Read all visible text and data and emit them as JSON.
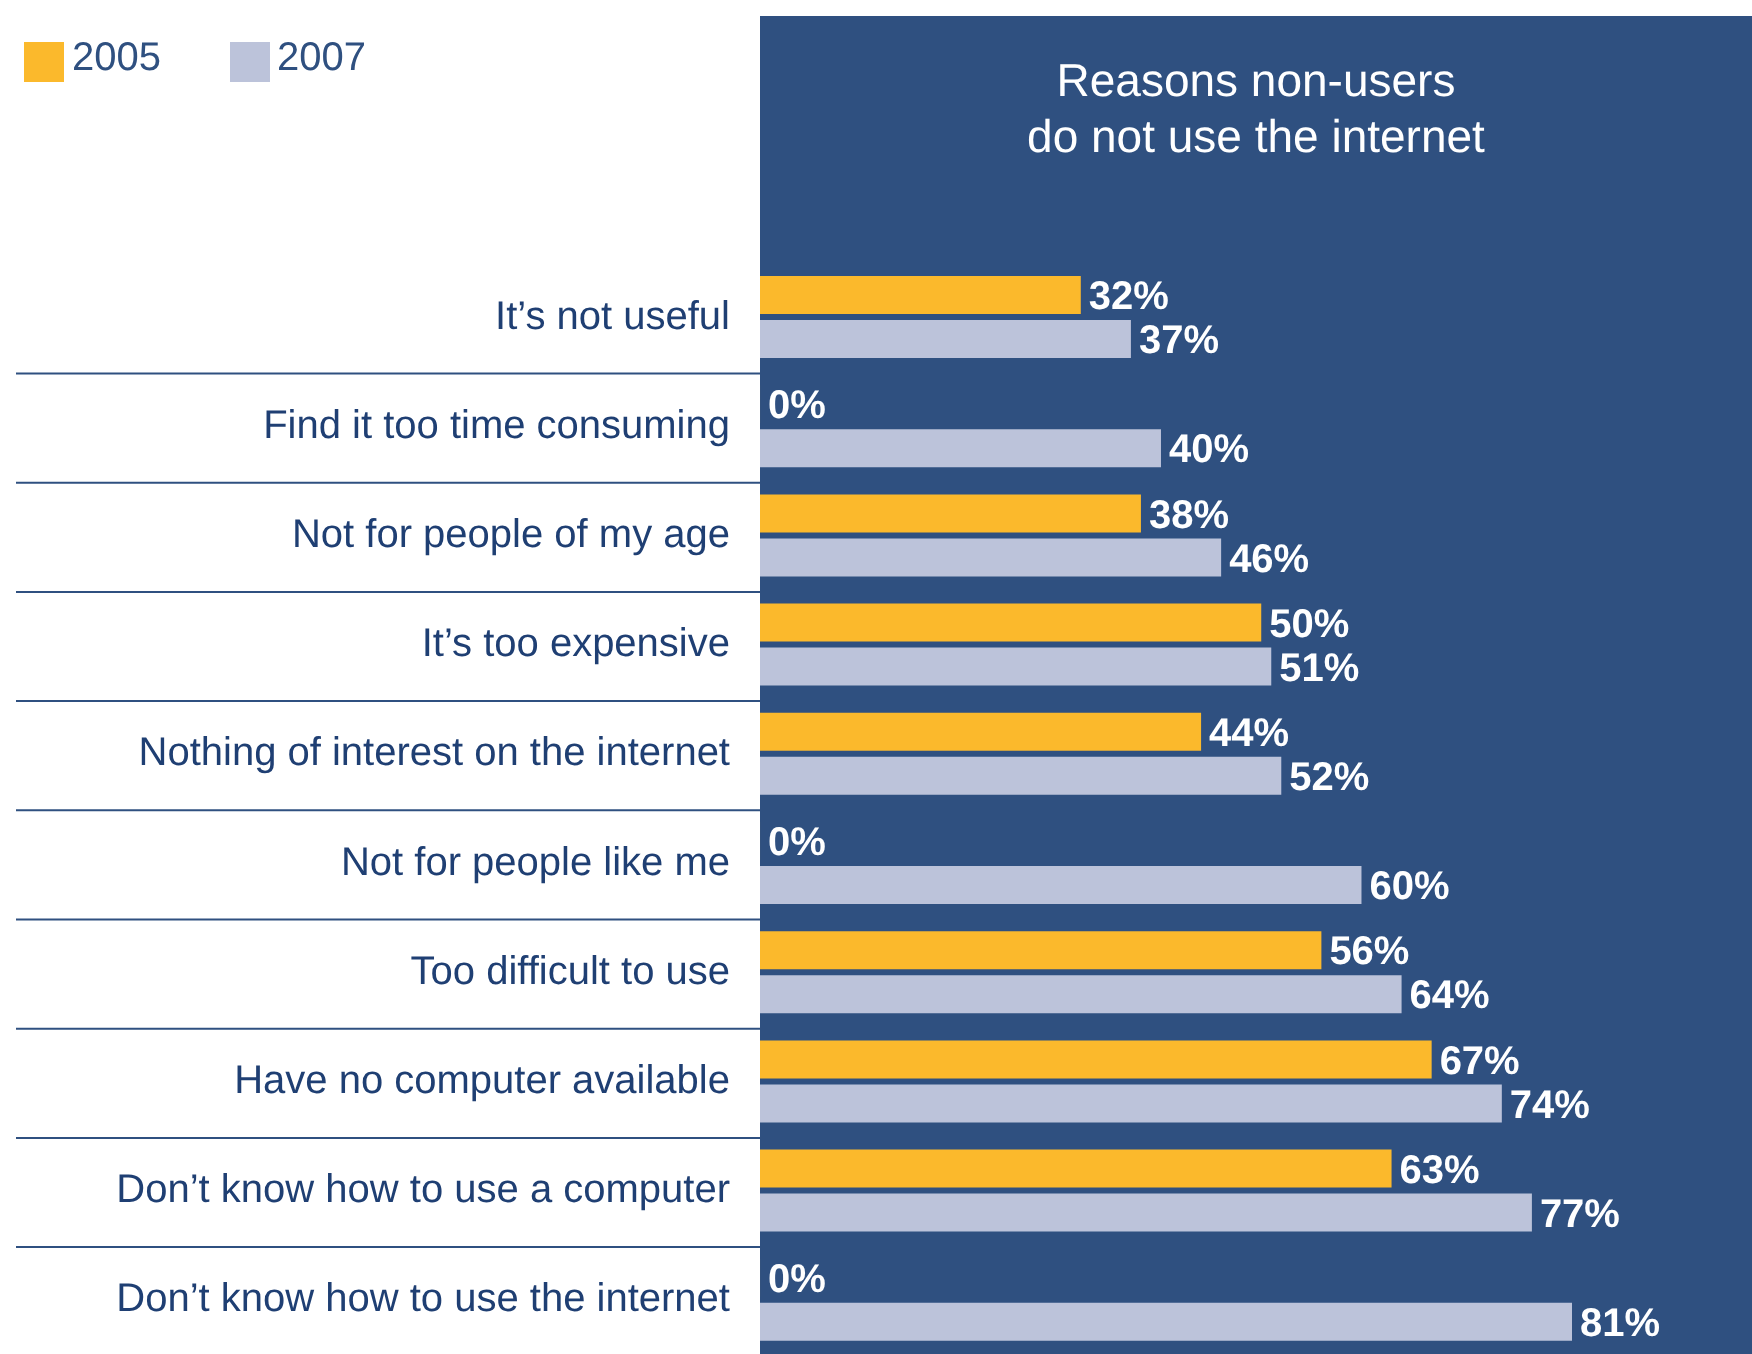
{
  "chart_data": {
    "type": "bar",
    "orientation": "horizontal",
    "title": "Reasons non-users\ndo not use the internet",
    "categories": [
      "It’s not useful",
      "Find it too time consuming",
      "Not for people of my age",
      "It’s too expensive",
      "Nothing of interest on the internet",
      "Not for people like me",
      "Too difficult to use",
      "Have no computer available",
      "Don’t know how to use a computer",
      "Don’t know how to use the internet"
    ],
    "series": [
      {
        "name": "2005",
        "color": "#fbb92c",
        "values": [
          32,
          0,
          38,
          50,
          44,
          0,
          56,
          67,
          63,
          0
        ],
        "value_labels": [
          "32%",
          "0%",
          "38%",
          "50%",
          "44%",
          "0%",
          "56%",
          "67%",
          "63%",
          "0%"
        ]
      },
      {
        "name": "2007",
        "color": "#bcc3da",
        "values": [
          37,
          40,
          46,
          51,
          52,
          60,
          64,
          74,
          77,
          81
        ],
        "value_labels": [
          "37%",
          "40%",
          "46%",
          "51%",
          "52%",
          "60%",
          "64%",
          "74%",
          "77%",
          "81%"
        ]
      }
    ],
    "tick_labels": "y",
    "legend": "top left"
  }
}
